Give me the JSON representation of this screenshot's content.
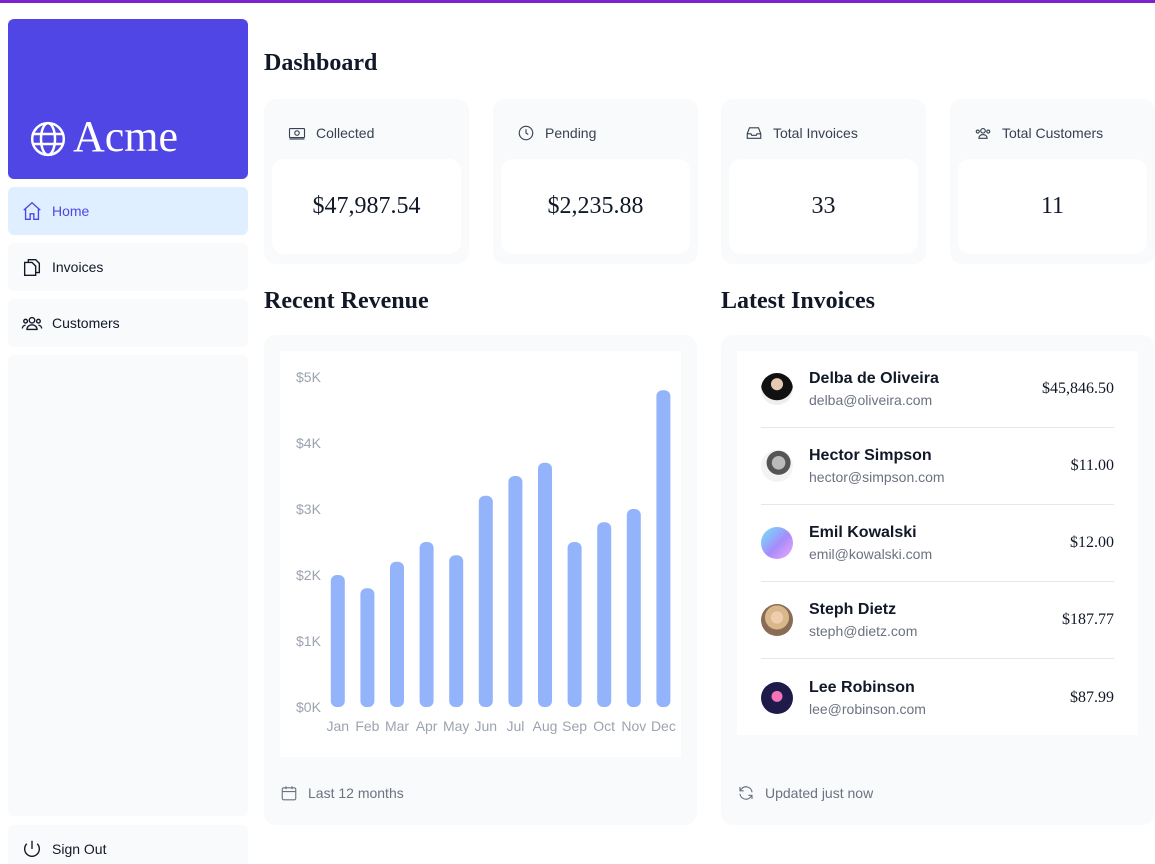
{
  "brand": {
    "name": "Acme",
    "color": "#4f46e5",
    "icon": "globe-icon"
  },
  "sidebar": {
    "items": [
      {
        "label": "Home",
        "icon": "home-icon",
        "active": true
      },
      {
        "label": "Invoices",
        "icon": "document-duplicate-icon",
        "active": false
      },
      {
        "label": "Customers",
        "icon": "user-group-icon",
        "active": false
      }
    ],
    "signout_label": "Sign Out"
  },
  "page": {
    "title": "Dashboard"
  },
  "cards": [
    {
      "label": "Collected",
      "value": "$47,987.54",
      "icon": "banknotes-icon"
    },
    {
      "label": "Pending",
      "value": "$2,235.88",
      "icon": "clock-icon"
    },
    {
      "label": "Total Invoices",
      "value": "33",
      "icon": "inbox-icon"
    },
    {
      "label": "Total Customers",
      "value": "11",
      "icon": "user-group-icon"
    }
  ],
  "revenue": {
    "title": "Recent Revenue",
    "footer": "Last 12 months"
  },
  "chart_data": {
    "type": "bar",
    "categories": [
      "Jan",
      "Feb",
      "Mar",
      "Apr",
      "May",
      "Jun",
      "Jul",
      "Aug",
      "Sep",
      "Oct",
      "Nov",
      "Dec"
    ],
    "values": [
      2000,
      1800,
      2200,
      2500,
      2300,
      3200,
      3500,
      3700,
      2500,
      2800,
      3000,
      4800
    ],
    "yticks": [
      "$5K",
      "$4K",
      "$3K",
      "$2K",
      "$1K",
      "$0K"
    ],
    "ylim": [
      0,
      5000
    ],
    "bar_color": "#93b4fb"
  },
  "latest": {
    "title": "Latest Invoices",
    "footer": "Updated just now",
    "invoices": [
      {
        "name": "Delba de Oliveira",
        "email": "delba@oliveira.com",
        "amount": "$45,846.50"
      },
      {
        "name": "Hector Simpson",
        "email": "hector@simpson.com",
        "amount": "$11.00"
      },
      {
        "name": "Emil Kowalski",
        "email": "emil@kowalski.com",
        "amount": "$12.00"
      },
      {
        "name": "Steph Dietz",
        "email": "steph@dietz.com",
        "amount": "$187.77"
      },
      {
        "name": "Lee Robinson",
        "email": "lee@robinson.com",
        "amount": "$87.99"
      }
    ]
  }
}
